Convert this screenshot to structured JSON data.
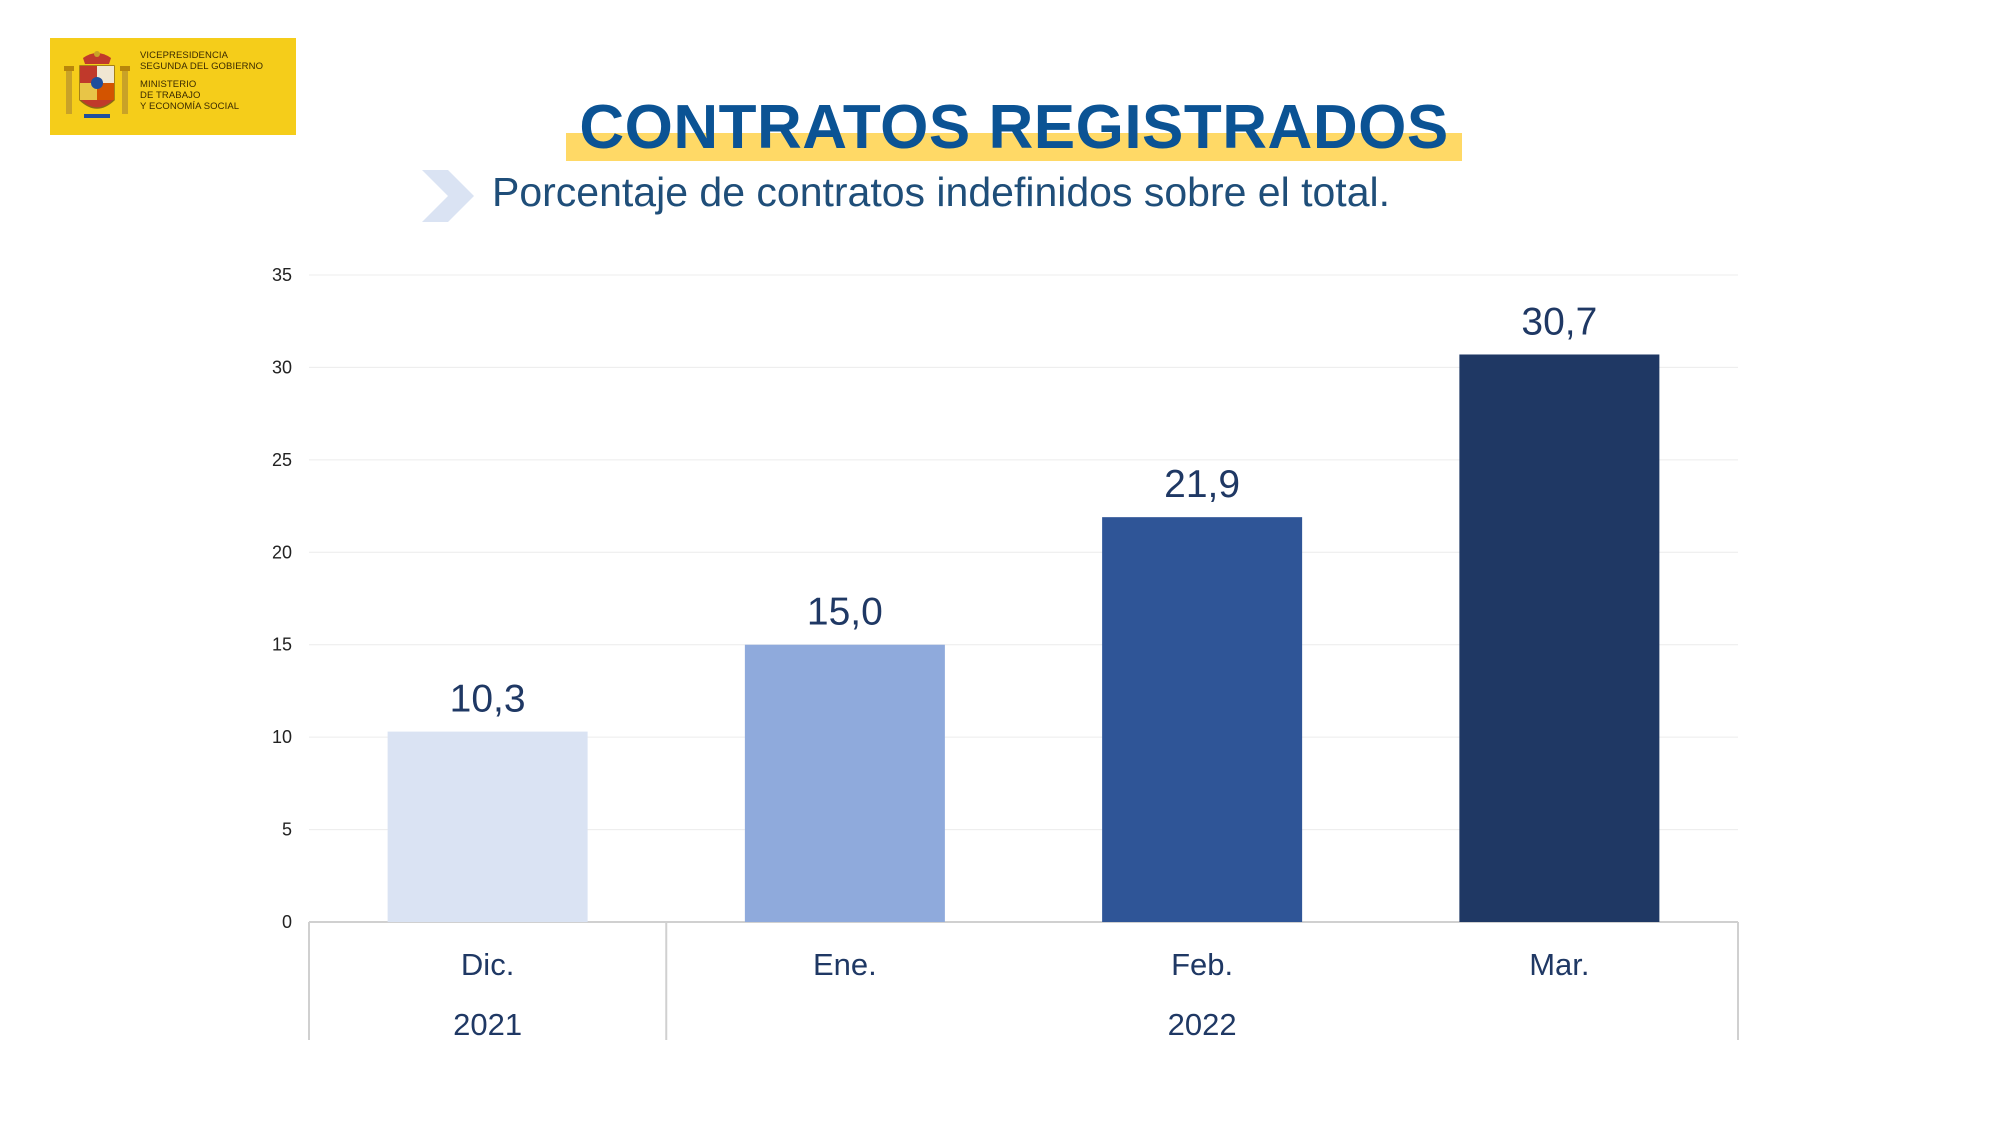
{
  "logo": {
    "line1": "VICEPRESIDENCIA",
    "line2": "SEGUNDA DEL GOBIERNO",
    "line3": "MINISTERIO",
    "line4": "DE TRABAJO",
    "line5": "Y ECONOMÍA SOCIAL"
  },
  "header": {
    "title": "CONTRATOS REGISTRADOS",
    "subtitle": "Porcentaje de contratos indefinidos sobre el total."
  },
  "colors": {
    "title": "#0b5394",
    "highlight": "#ffd966",
    "bars": [
      "#dae3f3",
      "#8faadc",
      "#2f5597",
      "#1f3864"
    ]
  },
  "chart_data": {
    "type": "bar",
    "title": "Porcentaje de contratos indefinidos sobre el total.",
    "categories": [
      "Dic.",
      "Ene.",
      "Feb.",
      "Mar."
    ],
    "values": [
      10.3,
      15.0,
      21.9,
      30.7
    ],
    "value_labels": [
      "10,3",
      "15,0",
      "21,9",
      "30,7"
    ],
    "year_groups": [
      {
        "label": "2021",
        "span": [
          0,
          0
        ]
      },
      {
        "label": "2022",
        "span": [
          1,
          3
        ]
      }
    ],
    "ylim": [
      0,
      35
    ],
    "yticks": [
      0,
      5,
      10,
      15,
      20,
      25,
      30,
      35
    ],
    "xlabel": "",
    "ylabel": "",
    "grid": true,
    "legend": "none"
  }
}
